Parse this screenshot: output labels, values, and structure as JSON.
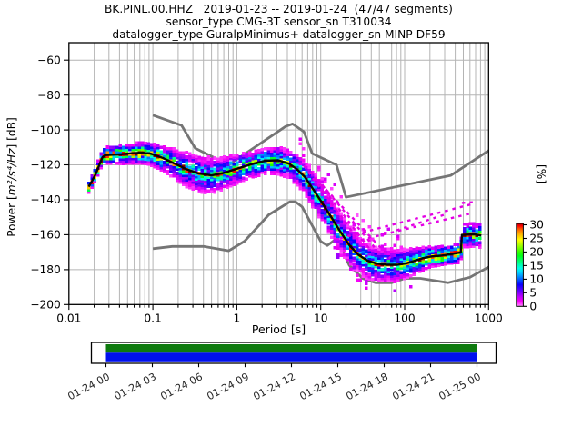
{
  "figure": {
    "title_lines": [
      "BK.PINL.00.HHZ   2019-01-23 -- 2019-01-24  (47/47 segments)",
      "sensor_type CMG-3T sensor_sn T310034",
      "datalogger_type GuralpMinimus+ datalogger_sn MINP-DF59"
    ],
    "ylabel_prefix": "Power [",
    "ylabel_math": "m²/s⁴/Hz",
    "ylabel_suffix": "] [dB]",
    "xlabel": "Period [s]",
    "colorbar_label": "[%]"
  },
  "chart_data": {
    "type": "heatmap",
    "subtype": "ppsd-probability-histogram",
    "xscale": "log",
    "xlabel": "Period [s]",
    "ylabel": "Power [m2/s4/Hz] [dB]",
    "xlim": [
      0.01,
      1000
    ],
    "ylim": [
      -200,
      -50
    ],
    "grid": true,
    "xticks": [
      0.01,
      0.1,
      1,
      10,
      100,
      1000
    ],
    "xtick_labels": [
      "0.01",
      "0.1",
      "1",
      "10",
      "100",
      "1000"
    ],
    "yticks": [
      -200,
      -180,
      -160,
      -140,
      -120,
      -100,
      -80,
      -60
    ],
    "ytick_labels": [
      "−200",
      "−180",
      "−160",
      "−140",
      "−120",
      "−100",
      "−80",
      "−60"
    ],
    "colorbar": {
      "label": "[%]",
      "ticks": [
        0,
        5,
        10,
        15,
        20,
        25,
        30
      ],
      "tick_labels": [
        "0",
        "5",
        "10",
        "15",
        "20",
        "25",
        "30"
      ],
      "min": 0,
      "max": 30.5,
      "stops": [
        [
          0,
          "#ffa6ff"
        ],
        [
          0.8,
          "#ff49ff"
        ],
        [
          2,
          "#f400f4"
        ],
        [
          3.5,
          "#c000ff"
        ],
        [
          5,
          "#8000ff"
        ],
        [
          6.5,
          "#4400ff"
        ],
        [
          8,
          "#0800ff"
        ],
        [
          9.5,
          "#0048ff"
        ],
        [
          11,
          "#0090ff"
        ],
        [
          12.5,
          "#00d4ff"
        ],
        [
          14,
          "#00ffe8"
        ],
        [
          15.5,
          "#00ffa8"
        ],
        [
          17,
          "#00ff60"
        ],
        [
          18.5,
          "#00ff18"
        ],
        [
          20,
          "#30ff00"
        ],
        [
          21.5,
          "#78ff00"
        ],
        [
          23,
          "#c0ff00"
        ],
        [
          24.5,
          "#ffff00"
        ],
        [
          26,
          "#ffc800"
        ],
        [
          27.5,
          "#ff8c00"
        ],
        [
          28.7,
          "#ff4600"
        ],
        [
          29.6,
          "#ff0000"
        ],
        [
          30.2,
          "#c80000"
        ],
        [
          30.5,
          "#8b0000"
        ]
      ]
    },
    "noise_models": {
      "color": "#757575",
      "nhnm": [
        [
          0.1,
          -91.5
        ],
        [
          0.22,
          -97.4
        ],
        [
          0.32,
          -110.5
        ],
        [
          0.8,
          -120.0
        ],
        [
          3.8,
          -98.0
        ],
        [
          4.6,
          -96.5
        ],
        [
          6.3,
          -101.0
        ],
        [
          7.9,
          -113.5
        ],
        [
          15.4,
          -120.0
        ],
        [
          20.0,
          -138.5
        ],
        [
          354.8,
          -126.0
        ],
        [
          1000,
          -111.8
        ]
      ],
      "nlnm": [
        [
          0.1,
          -168.0
        ],
        [
          0.17,
          -166.7
        ],
        [
          0.4,
          -166.7
        ],
        [
          0.8,
          -169.2
        ],
        [
          1.24,
          -163.7
        ],
        [
          2.4,
          -148.6
        ],
        [
          4.3,
          -141.1
        ],
        [
          5.0,
          -141.1
        ],
        [
          6.0,
          -144.0
        ],
        [
          10.0,
          -163.8
        ],
        [
          12.0,
          -166.2
        ],
        [
          15.6,
          -162.1
        ],
        [
          21.9,
          -177.5
        ],
        [
          31.6,
          -185.0
        ],
        [
          45.0,
          -187.5
        ],
        [
          70.0,
          -187.5
        ],
        [
          101.0,
          -185.0
        ],
        [
          154.0,
          -185.0
        ],
        [
          328.0,
          -187.5
        ],
        [
          600.0,
          -184.4
        ],
        [
          1000,
          -178.5
        ]
      ]
    },
    "psd_mode": [
      [
        0.0172,
        -132.5
      ],
      [
        0.019,
        -129
      ],
      [
        0.021,
        -125
      ],
      [
        0.023,
        -120
      ],
      [
        0.0252,
        -115.5
      ],
      [
        0.027,
        -114.4
      ],
      [
        0.032,
        -114.2
      ],
      [
        0.042,
        -113.9
      ],
      [
        0.055,
        -113.3
      ],
      [
        0.075,
        -113.0
      ],
      [
        0.095,
        -113.6
      ],
      [
        0.13,
        -115.9
      ],
      [
        0.18,
        -119.2
      ],
      [
        0.25,
        -122.4
      ],
      [
        0.35,
        -124.9
      ],
      [
        0.5,
        -126.0
      ],
      [
        0.7,
        -124.6
      ],
      [
        1.0,
        -122.2
      ],
      [
        1.5,
        -119.6
      ],
      [
        2.2,
        -117.6
      ],
      [
        3.1,
        -117.4
      ],
      [
        4.2,
        -119.3
      ],
      [
        5.2,
        -122.5
      ],
      [
        6.5,
        -127.0
      ],
      [
        8.0,
        -133.5
      ],
      [
        10,
        -140.5
      ],
      [
        13,
        -149
      ],
      [
        17,
        -158
      ],
      [
        22,
        -166
      ],
      [
        28,
        -171.5
      ],
      [
        36,
        -174.8
      ],
      [
        47,
        -176.6
      ],
      [
        62,
        -177.2
      ],
      [
        82,
        -177.2
      ],
      [
        103,
        -176.5
      ],
      [
        130,
        -175
      ],
      [
        165,
        -173.4
      ],
      [
        210,
        -172.4
      ],
      [
        270,
        -172
      ],
      [
        340,
        -171.3
      ],
      [
        430,
        -170.4
      ],
      [
        466,
        -170.2
      ],
      [
        482,
        -160.1
      ],
      [
        600,
        -159.9
      ],
      [
        700,
        -159.9
      ],
      [
        820,
        -160.4
      ]
    ],
    "psd_halfwidth_db": [
      [
        0.0172,
        2.5
      ],
      [
        0.025,
        3.5
      ],
      [
        0.05,
        4.5
      ],
      [
        0.09,
        5
      ],
      [
        0.14,
        6
      ],
      [
        0.25,
        8
      ],
      [
        0.45,
        8.5
      ],
      [
        0.8,
        7
      ],
      [
        1.5,
        6
      ],
      [
        2.5,
        6
      ],
      [
        4,
        6.5
      ],
      [
        6,
        7.5
      ],
      [
        9,
        8.5
      ],
      [
        15,
        9
      ],
      [
        25,
        9
      ],
      [
        40,
        8
      ],
      [
        60,
        7.5
      ],
      [
        90,
        7
      ],
      [
        140,
        6
      ],
      [
        220,
        4.5
      ],
      [
        340,
        4
      ],
      [
        440,
        4.5
      ],
      [
        500,
        5.5
      ],
      [
        700,
        5.5
      ],
      [
        820,
        5.5
      ]
    ],
    "period_bin_step_decades": 0.0376,
    "db_bin_height": 1.3,
    "outlier_color": "#e400e4",
    "outlier_streaks": [
      [
        [
          6.3,
          -120.5
        ],
        [
          28,
          -163
        ]
      ],
      [
        [
          7.6,
          -124
        ],
        [
          38,
          -168
        ]
      ],
      [
        [
          9.2,
          -128.5
        ],
        [
          52,
          -171.5
        ]
      ],
      [
        [
          11.5,
          -134
        ],
        [
          68,
          -173.5
        ]
      ],
      [
        [
          17,
          -162
        ],
        [
          620,
          -142.6
        ]
      ],
      [
        [
          30,
          -163
        ],
        [
          650,
          -147.5
        ]
      ],
      [
        [
          80,
          -157.5
        ],
        [
          320,
          -148
        ]
      ],
      [
        [
          480,
          -141.8
        ],
        [
          700,
          -141.3
        ]
      ]
    ],
    "halo_above": {
      "p_from": 5.5,
      "p_to": 95,
      "up_db": 22,
      "density": 0.11
    },
    "halo_below": {
      "p_from": 14,
      "p_to": 120,
      "down_db": 8,
      "density": 0.15
    },
    "timeline": {
      "tick_labels": [
        "01-24 00",
        "01-24 03",
        "01-24 06",
        "01-24 09",
        "01-24 12",
        "01-24 15",
        "01-24 18",
        "01-24 21",
        "01-25 00"
      ],
      "coverage_top_color": "#0e7a0e",
      "coverage_bottom_color": "#0011ee",
      "coverage_full": true
    }
  }
}
